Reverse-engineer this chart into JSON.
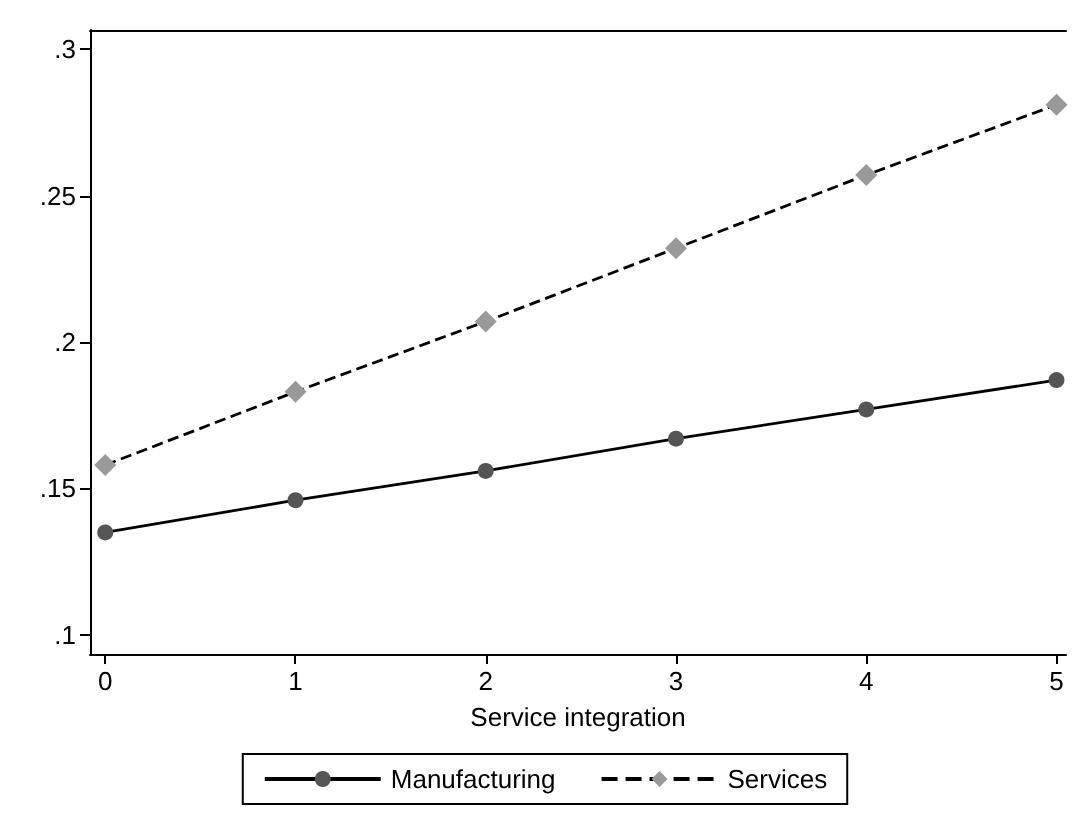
{
  "chart_data": {
    "type": "line",
    "xlabel": "Service integration",
    "x": [
      0,
      1,
      2,
      3,
      4,
      5
    ],
    "xlim": [
      -0.08,
      5.05
    ],
    "xticks": [
      0,
      1,
      2,
      3,
      4,
      5
    ],
    "ylim": [
      0.0935,
      0.3065
    ],
    "yticks": [
      {
        "value": 0.1,
        "label": ".1"
      },
      {
        "value": 0.15,
        "label": ".15"
      },
      {
        "value": 0.2,
        "label": ".2"
      },
      {
        "value": 0.25,
        "label": ".25"
      },
      {
        "value": 0.3,
        "label": ".3"
      }
    ],
    "grid": false,
    "legend": "bottom",
    "series": [
      {
        "name": "Manufacturing",
        "color": "#555555",
        "marker": "circle",
        "line_style": "solid",
        "values": [
          0.135,
          0.146,
          0.156,
          0.167,
          0.177,
          0.187
        ]
      },
      {
        "name": "Services",
        "color": "#999999",
        "marker": "diamond",
        "line_style": "dashed",
        "values": [
          0.158,
          0.183,
          0.207,
          0.232,
          0.257,
          0.281
        ]
      }
    ]
  }
}
